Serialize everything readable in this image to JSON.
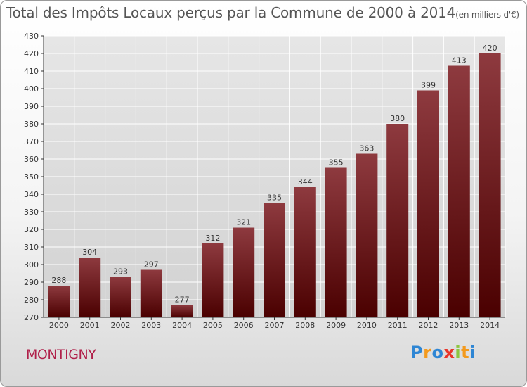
{
  "header": {
    "title": "Total des Impôts Locaux perçus par la Commune de 2000 à 2014",
    "unit": "(en milliers d'€)"
  },
  "footer": {
    "town": "MONTIGNY",
    "logo_letters": [
      {
        "ch": "P",
        "color": "#2e86d4"
      },
      {
        "ch": "r",
        "color": "#f39a1e"
      },
      {
        "ch": "o",
        "color": "#2e86d4"
      },
      {
        "ch": "x",
        "color": "#e8352a"
      },
      {
        "ch": "i",
        "color": "#8cc63f"
      },
      {
        "ch": "t",
        "color": "#f39a1e"
      },
      {
        "ch": "i",
        "color": "#2e86d4"
      }
    ]
  },
  "colors": {
    "bar_top": "#8e3a3f",
    "bar_bottom": "#4a0000",
    "axis": "#333333",
    "grid": "#ffffff"
  },
  "chart_data": {
    "type": "bar",
    "categories": [
      "2000",
      "2001",
      "2002",
      "2003",
      "2004",
      "2005",
      "2006",
      "2007",
      "2008",
      "2009",
      "2010",
      "2011",
      "2012",
      "2013",
      "2014"
    ],
    "values": [
      288,
      304,
      293,
      297,
      277,
      312,
      321,
      335,
      344,
      355,
      363,
      380,
      399,
      413,
      420
    ],
    "ylim": [
      270,
      430
    ],
    "yticks": [
      270,
      280,
      290,
      300,
      310,
      320,
      330,
      340,
      350,
      360,
      370,
      380,
      390,
      400,
      410,
      420,
      430
    ],
    "grid": true,
    "data_labels": true
  }
}
